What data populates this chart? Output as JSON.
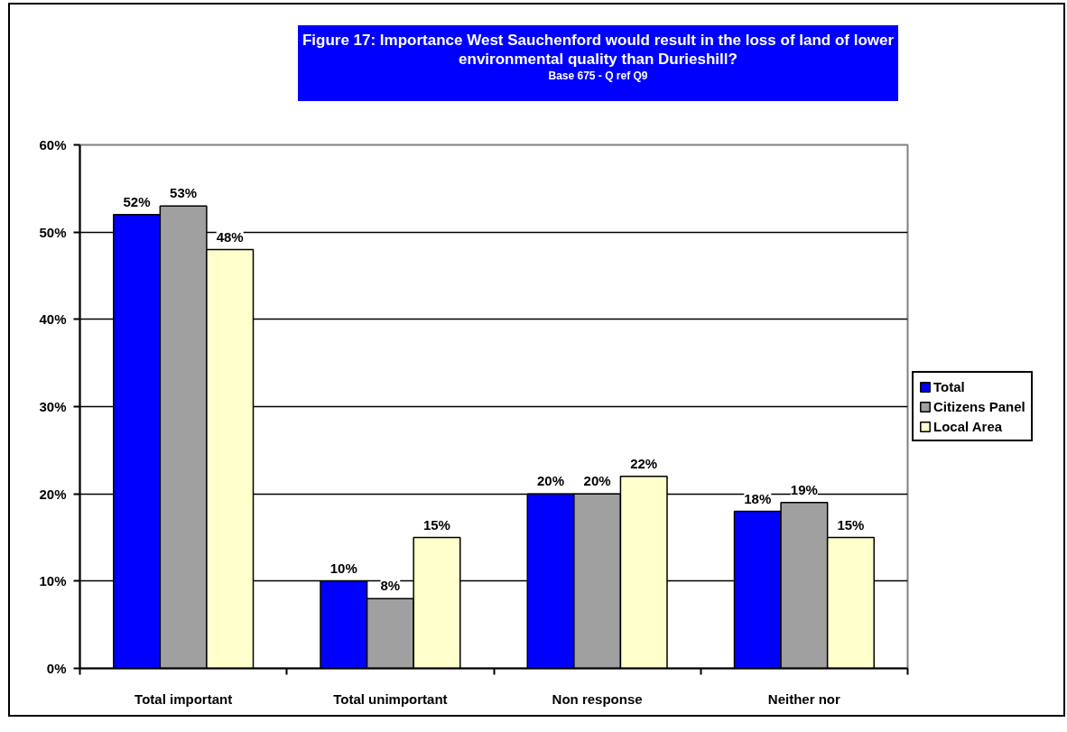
{
  "chart_data": {
    "type": "bar",
    "title": "Figure 17: Importance West Sauchenford would result in the loss of land of lower environmental quality than Durieshill?",
    "subtitle": "Base 675 - Q ref Q9",
    "categories": [
      "Total important",
      "Total unimportant",
      "Non response",
      "Neither nor"
    ],
    "series": [
      {
        "name": "Total",
        "color": "#0000ff",
        "values": [
          52,
          10,
          20,
          18
        ],
        "value_labels": [
          "52%",
          "10%",
          "20%",
          "18%"
        ]
      },
      {
        "name": "Citizens Panel",
        "color": "#a0a0a0",
        "values": [
          53,
          8,
          20,
          19
        ],
        "value_labels": [
          "53%",
          "8%",
          "20%",
          "19%"
        ]
      },
      {
        "name": "Local Area",
        "color": "#ffffcc",
        "values": [
          48,
          15,
          22,
          15
        ],
        "value_labels": [
          "48%",
          "15%",
          "22%",
          "15%"
        ]
      }
    ],
    "ylim": [
      0,
      60
    ],
    "yticks": [
      {
        "value": 0,
        "label": "0%"
      },
      {
        "value": 10,
        "label": "10%"
      },
      {
        "value": 20,
        "label": "20%"
      },
      {
        "value": 30,
        "label": "30%"
      },
      {
        "value": 40,
        "label": "40%"
      },
      {
        "value": 50,
        "label": "50%"
      },
      {
        "value": 60,
        "label": "60%"
      }
    ],
    "grid": "y",
    "legend": "right"
  }
}
